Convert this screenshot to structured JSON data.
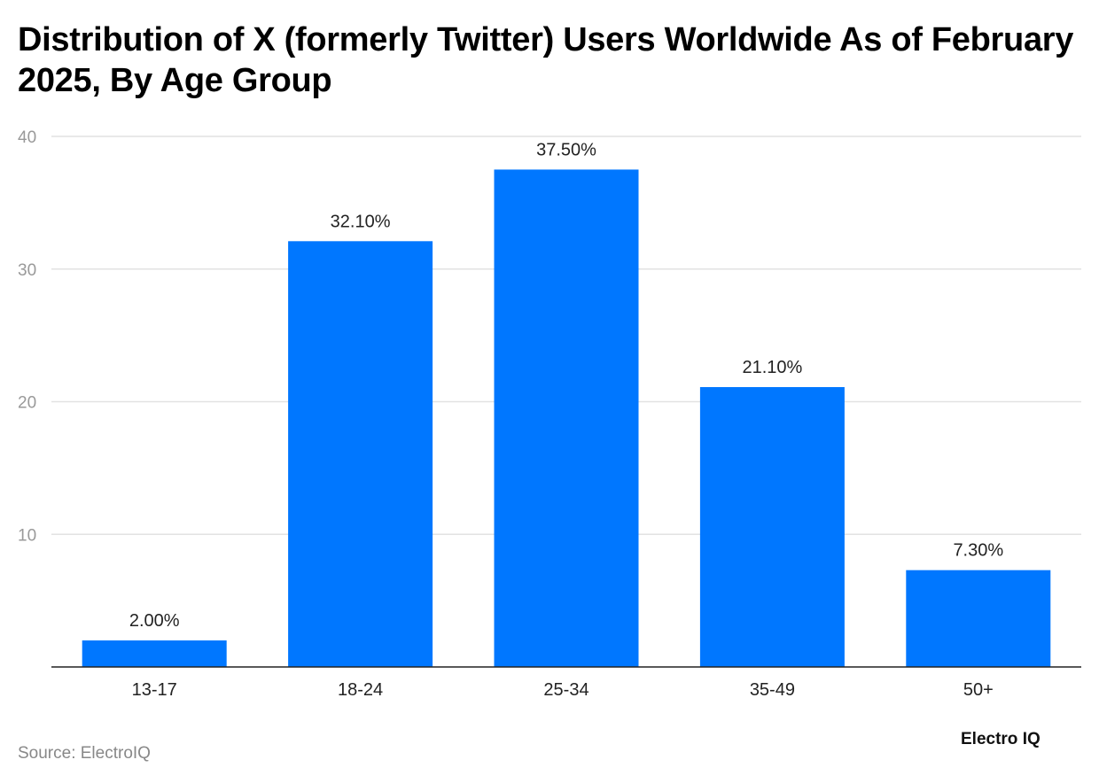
{
  "chart_data": {
    "type": "bar",
    "title": "Distribution of X (formerly Twitter) Users Worldwide As of February 2025, By Age Group",
    "categories": [
      "13-17",
      "18-24",
      "25-34",
      "35-49",
      "50+"
    ],
    "values": [
      2.0,
      32.1,
      37.5,
      21.1,
      7.3
    ],
    "data_labels": [
      "2.00%",
      "32.10%",
      "37.50%",
      "21.10%",
      "7.30%"
    ],
    "xlabel": "",
    "ylabel": "",
    "ylim": [
      0,
      40
    ],
    "yticks": [
      10,
      20,
      30,
      40
    ],
    "grid": true,
    "bar_color": "#0077FF"
  },
  "footer": {
    "source": "Source: ElectroIQ",
    "logo": "Electro IQ"
  }
}
